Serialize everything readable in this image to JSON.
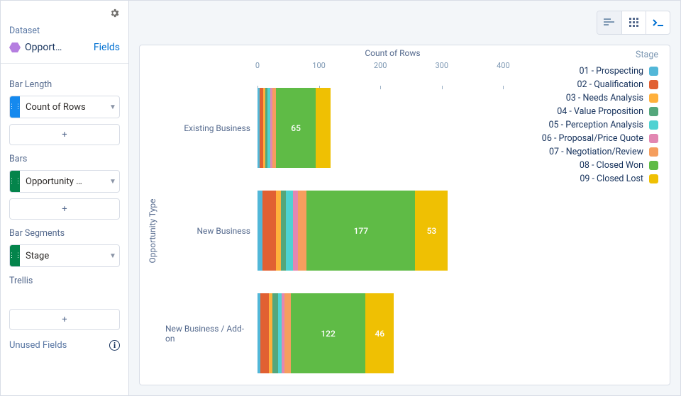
{
  "sidebar": {
    "dataset_label": "Dataset",
    "dataset_name": "Opport…",
    "fields_link": "Fields",
    "bar_length": {
      "label": "Bar Length",
      "pill": "Count of Rows",
      "handle_color": "#1589ee"
    },
    "bars": {
      "label": "Bars",
      "pill": "Opportunity …",
      "handle_color": "#04844b"
    },
    "bar_segments": {
      "label": "Bar Segments",
      "pill": "Stage",
      "handle_color": "#04844b"
    },
    "trellis": {
      "label": "Trellis"
    },
    "unused": {
      "label": "Unused Fields"
    },
    "plus": "+"
  },
  "chart": {
    "type": "stacked_bar_horizontal",
    "x_title": "Count of Rows",
    "y_title": "Opportunity Type",
    "legend_title": "Stage",
    "x_ticks": [
      0,
      100,
      200,
      300,
      400
    ],
    "x_max": 440,
    "stages": [
      {
        "name": "01 - Prospecting",
        "color": "#52b7d8"
      },
      {
        "name": "02 - Qualification",
        "color": "#e16032"
      },
      {
        "name": "03 - Needs Analysis",
        "color": "#ffb03b"
      },
      {
        "name": "04 - Value Proposition",
        "color": "#54a77b"
      },
      {
        "name": "05 - Perception Analysis",
        "color": "#4fd2d2"
      },
      {
        "name": "06 - Proposal/Price Quote",
        "color": "#e287b2"
      },
      {
        "name": "07 - Negotiation/Review",
        "color": "#f59e5e"
      },
      {
        "name": "08 - Closed Won",
        "color": "#5fbb46"
      },
      {
        "name": "09 - Closed Lost",
        "color": "#efc003"
      }
    ],
    "categories": [
      "Existing Business",
      "New Business",
      "New Business / Add-on"
    ],
    "data": [
      {
        "values": [
          4,
          5,
          4,
          3,
          5,
          3,
          6,
          65,
          24
        ],
        "show_labels": {
          "7": "65"
        }
      },
      {
        "values": [
          8,
          22,
          8,
          8,
          12,
          8,
          14,
          177,
          53
        ],
        "show_labels": {
          "7": "177",
          "8": "53"
        }
      },
      {
        "values": [
          5,
          14,
          5,
          10,
          5,
          5,
          10,
          122,
          46
        ],
        "show_labels": {
          "7": "122",
          "8": "46"
        }
      }
    ],
    "colors": {
      "axis_text": "#7d98b3",
      "label_text": "#54698d",
      "value_text": "#ffffff",
      "background": "#ffffff",
      "panel_background": "#f3f6f9"
    }
  }
}
